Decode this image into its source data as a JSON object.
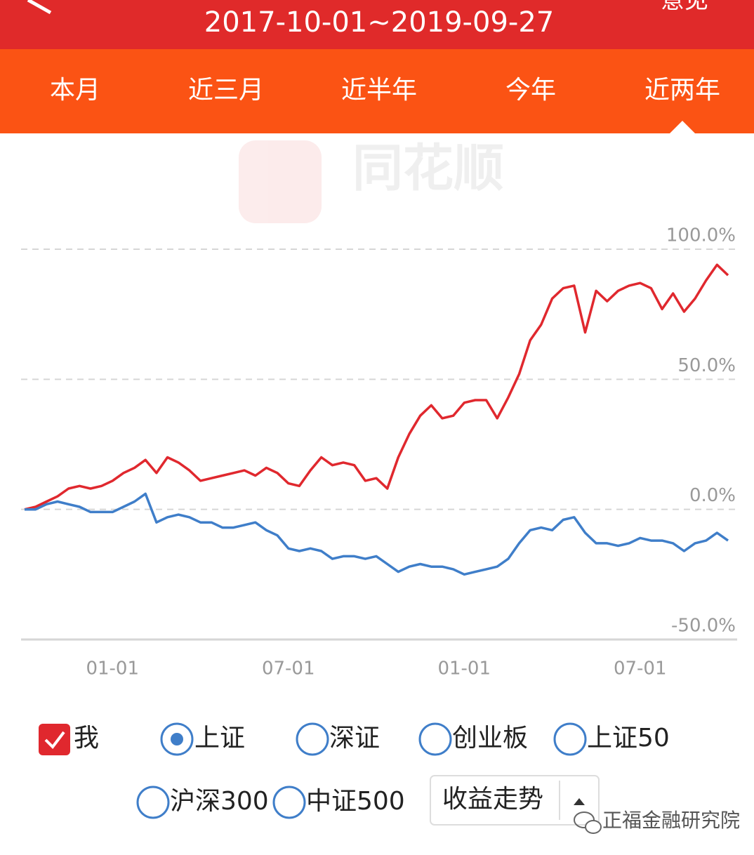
{
  "header": {
    "title": "2017-10-01~2019-09-27",
    "action": "意见"
  },
  "tabs": [
    "本月",
    "近三月",
    "近半年",
    "今年",
    "近两年"
  ],
  "selected_tab": 4,
  "watermark": "同花顺",
  "chart_data": {
    "type": "line",
    "categories": [
      null,
      null,
      null,
      null,
      null,
      null,
      null,
      null,
      "01-01",
      null,
      null,
      null,
      null,
      null,
      null,
      null,
      null,
      null,
      null,
      null,
      null,
      null,
      null,
      null,
      "07-01",
      null,
      null,
      null,
      null,
      null,
      null,
      null,
      null,
      null,
      null,
      null,
      null,
      null,
      null,
      null,
      "01-01",
      null,
      null,
      null,
      null,
      null,
      null,
      null,
      null,
      null,
      null,
      null,
      null,
      null,
      null,
      null,
      "07-01",
      null,
      null,
      null,
      null,
      null,
      null,
      null,
      null
    ],
    "series": [
      {
        "name": "我",
        "color": "#e0282e",
        "values": [
          0,
          1,
          3,
          5,
          8,
          9,
          8,
          9,
          11,
          14,
          16,
          19,
          14,
          20,
          18,
          15,
          11,
          12,
          13,
          14,
          15,
          13,
          16,
          14,
          10,
          9,
          15,
          20,
          17,
          18,
          17,
          11,
          12,
          8,
          20,
          29,
          36,
          40,
          35,
          36,
          41,
          42,
          42,
          35,
          43,
          52,
          65,
          71,
          81,
          85,
          86,
          68,
          84,
          80,
          84,
          86,
          87,
          85,
          77,
          83,
          76,
          81,
          88,
          94,
          90
        ]
      },
      {
        "name": "上证",
        "color": "#3f7ec9",
        "values": [
          0,
          0,
          2,
          3,
          2,
          1,
          -1,
          -1,
          -1,
          1,
          3,
          6,
          -5,
          -3,
          -2,
          -3,
          -5,
          -5,
          -7,
          -7,
          -6,
          -5,
          -8,
          -10,
          -15,
          -16,
          -15,
          -16,
          -19,
          -18,
          -18,
          -19,
          -18,
          -21,
          -24,
          -22,
          -21,
          -22,
          -22,
          -23,
          -25,
          -24,
          -23,
          -22,
          -19,
          -13,
          -8,
          -7,
          -8,
          -4,
          -3,
          -9,
          -13,
          -13,
          -14,
          -13,
          -11,
          -12,
          -12,
          -13,
          -16,
          -13,
          -12,
          -9,
          -12
        ]
      }
    ],
    "ylim": [
      -50,
      100
    ],
    "yticks": [
      {
        "value": -50,
        "label": "-50.0%"
      },
      {
        "value": 0,
        "label": "0.0%"
      },
      {
        "value": 50,
        "label": "50.0%"
      },
      {
        "value": 100,
        "label": "100.0%"
      }
    ],
    "grid": true
  },
  "index_options": [
    "深证",
    "创业板",
    "上证50",
    "沪深300",
    "中证500"
  ],
  "dropdown": "收益走势",
  "footer_watermark": "正福金融研究院"
}
